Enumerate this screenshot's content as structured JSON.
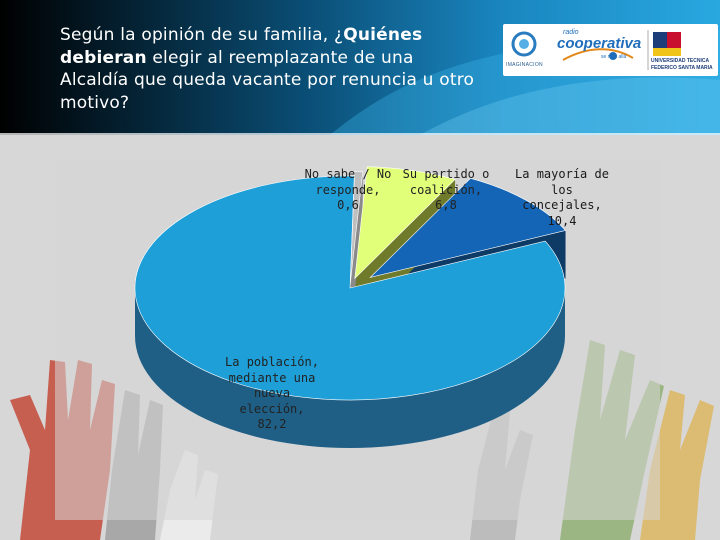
{
  "slide": {
    "title_part1": "Según la opinión de su familia, ¿",
    "title_bold1": "Quiénes debieran",
    "title_part2": " elegir al reemplazante de una Alcaldía que queda vacante por renuncia u otro motivo?"
  },
  "logos": {
    "imaginacion": "IMAGINACION",
    "radio_small": "radio",
    "cooperativa": "cooperativa",
    "cooperativa_tag": "se más allá",
    "utfsm_line1": "UNIVERSIDAD TECNICA",
    "utfsm_line2": "FEDERICO SANTA MARIA"
  },
  "colors": {
    "poblacion": "#1e9fd8",
    "concejales": "#1565b7",
    "partido": "#e2ff7a",
    "no_sabe": "#bfbfbf"
  },
  "chart_data": {
    "type": "pie",
    "title": "",
    "slices": [
      {
        "label": "La población, mediante una nueva elección",
        "value": 82.2,
        "display": "La población, mediante una nueva elección, 82,2"
      },
      {
        "label": "La mayoría de los concejales",
        "value": 10.4,
        "display": "La mayoría de los concejales, 10,4"
      },
      {
        "label": "Su partido o coalición",
        "value": 6.8,
        "display": "Su partido o coalición, 6,8"
      },
      {
        "label": "No sabe / No responde",
        "value": 0.6,
        "display": "No sabe / No responde, 0,6"
      }
    ]
  }
}
